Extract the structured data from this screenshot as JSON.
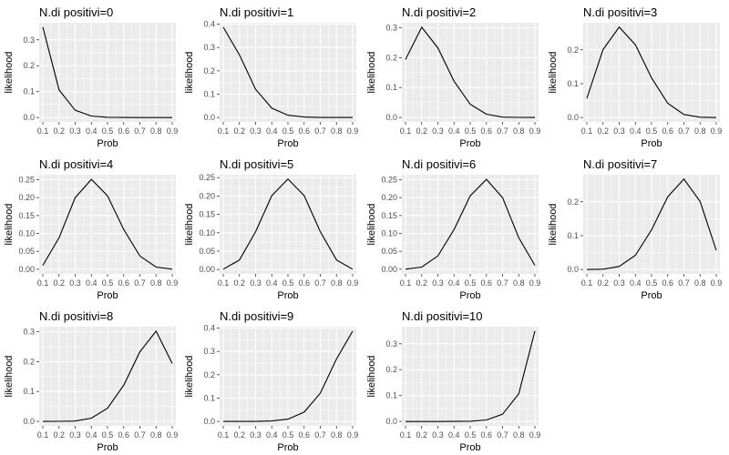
{
  "figure": {
    "panel_bg": "#ebebeb",
    "grid_color": "#ffffff",
    "line_color": "#000000",
    "text_color": "#000000",
    "tick_text_color": "#4d4d4d"
  },
  "chart_data": [
    {
      "type": "line",
      "title": "N.di positivi=0",
      "xlabel": "Prob",
      "ylabel": "likelihood",
      "x": [
        0.1,
        0.2,
        0.3,
        0.4,
        0.5,
        0.6,
        0.7,
        0.8,
        0.9
      ],
      "values": [
        0.349,
        0.107,
        0.028,
        0.006,
        0.001,
        0.0001,
        0.0,
        0.0,
        0.0
      ],
      "ylim": [
        -0.017,
        0.366
      ],
      "yticks": [
        0.0,
        0.1,
        0.2,
        0.3
      ],
      "yticklabels": [
        "0.0",
        "0.1",
        "0.2",
        "0.3"
      ],
      "xticks": [
        "0.1",
        "0.2",
        "0.3",
        "0.4",
        "0.5",
        "0.6",
        "0.7",
        "0.8",
        "0.9"
      ],
      "grid": true
    },
    {
      "type": "line",
      "title": "N.di positivi=1",
      "xlabel": "Prob",
      "ylabel": "likelihood",
      "x": [
        0.1,
        0.2,
        0.3,
        0.4,
        0.5,
        0.6,
        0.7,
        0.8,
        0.9
      ],
      "values": [
        0.387,
        0.268,
        0.121,
        0.04,
        0.01,
        0.002,
        0.0001,
        0.0,
        0.0
      ],
      "ylim": [
        -0.019,
        0.406
      ],
      "yticks": [
        0.0,
        0.1,
        0.2,
        0.3,
        0.4
      ],
      "yticklabels": [
        "0.0",
        "0.1",
        "0.2",
        "0.3",
        "0.4"
      ],
      "xticks": [
        "0.1",
        "0.2",
        "0.3",
        "0.4",
        "0.5",
        "0.6",
        "0.7",
        "0.8",
        "0.9"
      ],
      "grid": true
    },
    {
      "type": "line",
      "title": "N.di positivi=2",
      "xlabel": "Prob",
      "ylabel": "likelihood",
      "x": [
        0.1,
        0.2,
        0.3,
        0.4,
        0.5,
        0.6,
        0.7,
        0.8,
        0.9
      ],
      "values": [
        0.194,
        0.302,
        0.233,
        0.121,
        0.044,
        0.011,
        0.001,
        0.0001,
        0.0
      ],
      "ylim": [
        -0.015,
        0.317
      ],
      "yticks": [
        0.0,
        0.1,
        0.2,
        0.3
      ],
      "yticklabels": [
        "0.0",
        "0.1",
        "0.2",
        "0.3"
      ],
      "xticks": [
        "0.1",
        "0.2",
        "0.3",
        "0.4",
        "0.5",
        "0.6",
        "0.7",
        "0.8",
        "0.9"
      ],
      "grid": true
    },
    {
      "type": "line",
      "title": "N.di positivi=3",
      "xlabel": "Prob",
      "ylabel": "likelihood",
      "x": [
        0.1,
        0.2,
        0.3,
        0.4,
        0.5,
        0.6,
        0.7,
        0.8,
        0.9
      ],
      "values": [
        0.057,
        0.201,
        0.267,
        0.215,
        0.117,
        0.042,
        0.009,
        0.001,
        0.0
      ],
      "ylim": [
        -0.013,
        0.28
      ],
      "yticks": [
        0.0,
        0.1,
        0.2
      ],
      "yticklabels": [
        "0.0",
        "0.1",
        "0.2"
      ],
      "xticks": [
        "0.1",
        "0.2",
        "0.3",
        "0.4",
        "0.5",
        "0.6",
        "0.7",
        "0.8",
        "0.9"
      ],
      "grid": true
    },
    {
      "type": "line",
      "title": "N.di positivi=4",
      "xlabel": "Prob",
      "ylabel": "likelihood",
      "x": [
        0.1,
        0.2,
        0.3,
        0.4,
        0.5,
        0.6,
        0.7,
        0.8,
        0.9
      ],
      "values": [
        0.011,
        0.088,
        0.2,
        0.251,
        0.205,
        0.111,
        0.037,
        0.006,
        0.0001
      ],
      "ylim": [
        -0.013,
        0.264
      ],
      "yticks": [
        0.0,
        0.05,
        0.1,
        0.15,
        0.2,
        0.25
      ],
      "yticklabels": [
        "0.00",
        "0.05",
        "0.10",
        "0.15",
        "0.20",
        "0.25"
      ],
      "xticks": [
        "0.1",
        "0.2",
        "0.3",
        "0.4",
        "0.5",
        "0.6",
        "0.7",
        "0.8",
        "0.9"
      ],
      "grid": true
    },
    {
      "type": "line",
      "title": "N.di positivi=5",
      "xlabel": "Prob",
      "ylabel": "likelihood",
      "x": [
        0.1,
        0.2,
        0.3,
        0.4,
        0.5,
        0.6,
        0.7,
        0.8,
        0.9
      ],
      "values": [
        0.001,
        0.026,
        0.103,
        0.201,
        0.246,
        0.201,
        0.103,
        0.026,
        0.001
      ],
      "ylim": [
        -0.012,
        0.258
      ],
      "yticks": [
        0.0,
        0.05,
        0.1,
        0.15,
        0.2,
        0.25
      ],
      "yticklabels": [
        "0.00",
        "0.05",
        "0.10",
        "0.15",
        "0.20",
        "0.25"
      ],
      "xticks": [
        "0.1",
        "0.2",
        "0.3",
        "0.4",
        "0.5",
        "0.6",
        "0.7",
        "0.8",
        "0.9"
      ],
      "grid": true
    },
    {
      "type": "line",
      "title": "N.di positivi=6",
      "xlabel": "Prob",
      "ylabel": "likelihood",
      "x": [
        0.1,
        0.2,
        0.3,
        0.4,
        0.5,
        0.6,
        0.7,
        0.8,
        0.9
      ],
      "values": [
        0.0001,
        0.006,
        0.037,
        0.111,
        0.205,
        0.251,
        0.2,
        0.088,
        0.011
      ],
      "ylim": [
        -0.013,
        0.264
      ],
      "yticks": [
        0.0,
        0.05,
        0.1,
        0.15,
        0.2,
        0.25
      ],
      "yticklabels": [
        "0.00",
        "0.05",
        "0.10",
        "0.15",
        "0.20",
        "0.25"
      ],
      "xticks": [
        "0.1",
        "0.2",
        "0.3",
        "0.4",
        "0.5",
        "0.6",
        "0.7",
        "0.8",
        "0.9"
      ],
      "grid": true
    },
    {
      "type": "line",
      "title": "N.di positivi=7",
      "xlabel": "Prob",
      "ylabel": "likelihood",
      "x": [
        0.1,
        0.2,
        0.3,
        0.4,
        0.5,
        0.6,
        0.7,
        0.8,
        0.9
      ],
      "values": [
        0.0,
        0.001,
        0.009,
        0.042,
        0.117,
        0.215,
        0.267,
        0.201,
        0.057
      ],
      "ylim": [
        -0.013,
        0.28
      ],
      "yticks": [
        0.0,
        0.1,
        0.2
      ],
      "yticklabels": [
        "0.0",
        "0.1",
        "0.2"
      ],
      "xticks": [
        "0.1",
        "0.2",
        "0.3",
        "0.4",
        "0.5",
        "0.6",
        "0.7",
        "0.8",
        "0.9"
      ],
      "grid": true
    },
    {
      "type": "line",
      "title": "N.di positivi=8",
      "xlabel": "Prob",
      "ylabel": "likelihood",
      "x": [
        0.1,
        0.2,
        0.3,
        0.4,
        0.5,
        0.6,
        0.7,
        0.8,
        0.9
      ],
      "values": [
        0.0,
        0.0001,
        0.001,
        0.011,
        0.044,
        0.121,
        0.233,
        0.302,
        0.194
      ],
      "ylim": [
        -0.015,
        0.317
      ],
      "yticks": [
        0.0,
        0.1,
        0.2,
        0.3
      ],
      "yticklabels": [
        "0.0",
        "0.1",
        "0.2",
        "0.3"
      ],
      "xticks": [
        "0.1",
        "0.2",
        "0.3",
        "0.4",
        "0.5",
        "0.6",
        "0.7",
        "0.8",
        "0.9"
      ],
      "grid": true
    },
    {
      "type": "line",
      "title": "N.di positivi=9",
      "xlabel": "Prob",
      "ylabel": "likelihood",
      "x": [
        0.1,
        0.2,
        0.3,
        0.4,
        0.5,
        0.6,
        0.7,
        0.8,
        0.9
      ],
      "values": [
        0.0,
        0.0,
        0.0001,
        0.002,
        0.01,
        0.04,
        0.121,
        0.268,
        0.387
      ],
      "ylim": [
        -0.019,
        0.406
      ],
      "yticks": [
        0.0,
        0.1,
        0.2,
        0.3,
        0.4
      ],
      "yticklabels": [
        "0.0",
        "0.1",
        "0.2",
        "0.3",
        "0.4"
      ],
      "xticks": [
        "0.1",
        "0.2",
        "0.3",
        "0.4",
        "0.5",
        "0.6",
        "0.7",
        "0.8",
        "0.9"
      ],
      "grid": true
    },
    {
      "type": "line",
      "title": "N.di positivi=10",
      "xlabel": "Prob",
      "ylabel": "likelihood",
      "x": [
        0.1,
        0.2,
        0.3,
        0.4,
        0.5,
        0.6,
        0.7,
        0.8,
        0.9
      ],
      "values": [
        0.0,
        0.0,
        0.0,
        0.0001,
        0.001,
        0.006,
        0.028,
        0.107,
        0.349
      ],
      "ylim": [
        -0.017,
        0.366
      ],
      "yticks": [
        0.0,
        0.1,
        0.2,
        0.3
      ],
      "yticklabels": [
        "0.0",
        "0.1",
        "0.2",
        "0.3"
      ],
      "xticks": [
        "0.1",
        "0.2",
        "0.3",
        "0.4",
        "0.5",
        "0.6",
        "0.7",
        "0.8",
        "0.9"
      ],
      "grid": true
    }
  ]
}
